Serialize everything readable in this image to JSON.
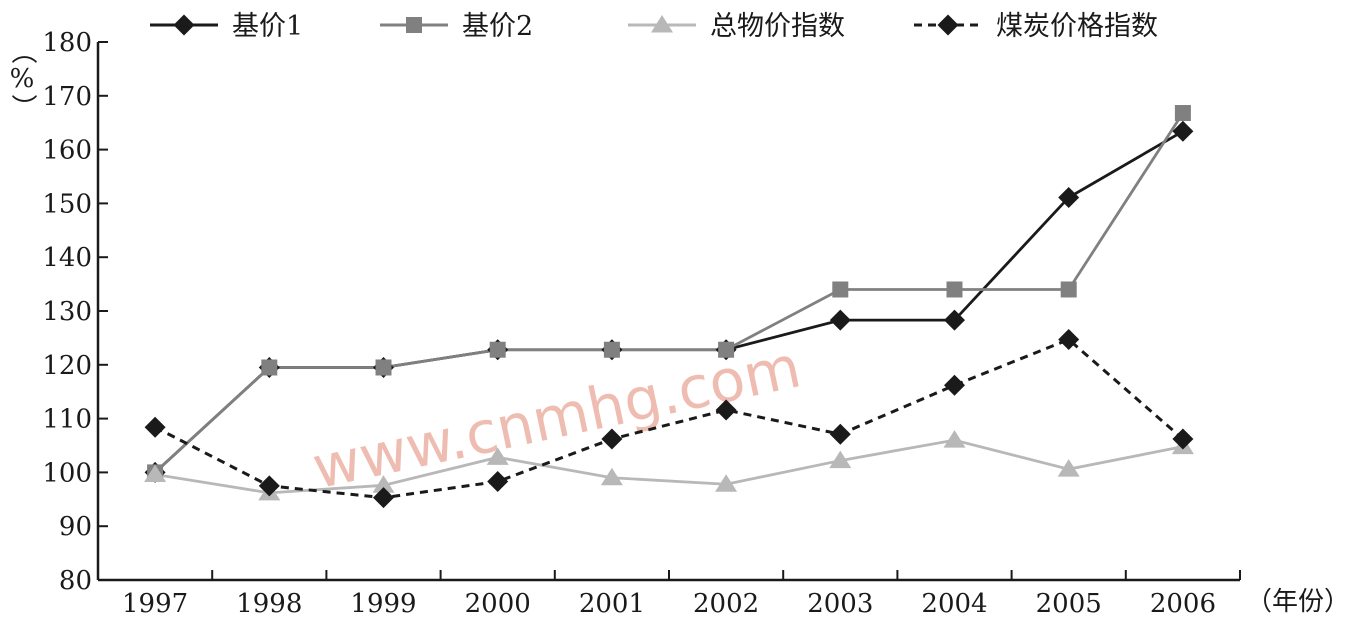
{
  "watermark": "www.cnmhg.com",
  "chart_data": {
    "type": "line",
    "x_label": "（年份）",
    "y_label": "（%）",
    "categories": [
      "1997",
      "1998",
      "1999",
      "2000",
      "2001",
      "2002",
      "2003",
      "2004",
      "2005",
      "2006"
    ],
    "y_range": [
      80,
      180
    ],
    "y_ticks": [
      80,
      90,
      100,
      110,
      120,
      130,
      140,
      150,
      160,
      170,
      180
    ],
    "grid": false,
    "legend_position": "top",
    "series": [
      {
        "name": "基价1",
        "color": "#1a1a1a",
        "marker": "diamond",
        "dashed": false,
        "values": [
          100,
          119.5,
          119.5,
          122.8,
          122.8,
          122.8,
          128.3,
          128.3,
          151.1,
          163.4
        ]
      },
      {
        "name": "基价2",
        "color": "#808080",
        "marker": "square",
        "dashed": false,
        "values": [
          100,
          119.5,
          119.5,
          122.8,
          122.8,
          122.8,
          134,
          134,
          134,
          166.8
        ]
      },
      {
        "name": "总物价指数",
        "color": "#b8b8b8",
        "marker": "triangle",
        "dashed": false,
        "values": [
          99.6,
          96.2,
          97.6,
          102.8,
          99,
          97.8,
          102.2,
          106,
          100.6,
          104.8
        ]
      },
      {
        "name": "煤炭价格指数",
        "color": "#1a1a1a",
        "marker": "diamond",
        "dashed": true,
        "values": [
          108.4,
          97.5,
          95.3,
          98.3,
          106.2,
          111.6,
          107.1,
          116.2,
          124.7,
          106.2
        ]
      }
    ]
  }
}
